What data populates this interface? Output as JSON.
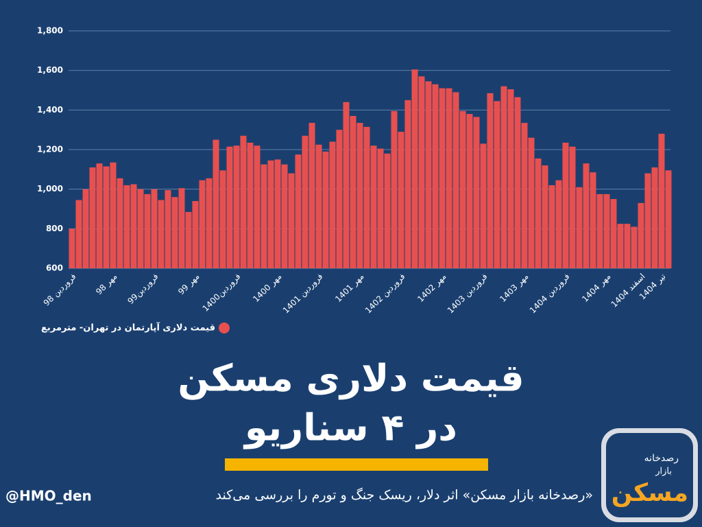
{
  "chart_data": {
    "type": "bar",
    "title": "قیمت دلاری مسکن",
    "title_line2": "در ۴ سناریو",
    "subtitle": "«رصدخانه بازار مسکن» اثر دلار، ریسک جنگ و تورم را بررسی می‌کند",
    "handle": "@HMO_den",
    "logo": {
      "line1": "رصدخانه",
      "line2": "بازار",
      "line3": "مسکن"
    },
    "series": [
      {
        "name": "قیمت دلاری آپارتمان در تهران- مترمربع",
        "color": "#e8504f",
        "values": [
          800,
          945,
          1000,
          1110,
          1130,
          1115,
          1135,
          1055,
          1020,
          1025,
          1000,
          975,
          1000,
          945,
          995,
          960,
          1005,
          885,
          940,
          1045,
          1055,
          1250,
          1095,
          1215,
          1220,
          1270,
          1235,
          1220,
          1125,
          1145,
          1150,
          1125,
          1080,
          1175,
          1270,
          1335,
          1225,
          1190,
          1240,
          1300,
          1440,
          1370,
          1335,
          1315,
          1220,
          1205,
          1180,
          1395,
          1290,
          1450,
          1605,
          1570,
          1545,
          1530,
          1510,
          1510,
          1490,
          1395,
          1380,
          1365,
          1230,
          1485,
          1445,
          1520,
          1505,
          1465,
          1335,
          1260,
          1155,
          1120,
          1020,
          1045,
          1235,
          1215,
          1010,
          1130,
          1085,
          975,
          975,
          950,
          825,
          825,
          810,
          930,
          1080,
          1110,
          1280,
          1095
        ]
      }
    ],
    "categories": [
      "فروردین 98",
      null,
      null,
      null,
      null,
      null,
      "مهر 98",
      null,
      null,
      null,
      null,
      null,
      "فروردین99",
      null,
      null,
      null,
      null,
      null,
      "مهر 99",
      null,
      null,
      null,
      null,
      null,
      "فروردین1400",
      null,
      null,
      null,
      null,
      null,
      "مهر 1400",
      null,
      null,
      null,
      null,
      null,
      "فروردین 1401",
      null,
      null,
      null,
      null,
      null,
      "مهر 1401",
      null,
      null,
      null,
      null,
      null,
      "فروردین 1402",
      null,
      null,
      null,
      null,
      null,
      "مهر 1402",
      null,
      null,
      null,
      null,
      null,
      "فروردین 1403",
      null,
      null,
      null,
      null,
      null,
      "مهر 1403",
      null,
      null,
      null,
      null,
      null,
      "فروردین 1404",
      null,
      null,
      null,
      null,
      null,
      "مهر 1404",
      null,
      null,
      null,
      null,
      "اسفند 1404",
      null,
      null,
      "تیر 1404",
      null
    ],
    "ylim": [
      600,
      1800
    ],
    "yticks": [
      600,
      800,
      {
        "value": 1000,
        "label": "1,000"
      },
      {
        "value": 1200,
        "label": "1,200"
      },
      {
        "value": 1400,
        "label": "1,400"
      },
      {
        "value": 1600,
        "label": "1,600"
      },
      {
        "value": 1800,
        "label": "1,800"
      }
    ],
    "grid": true
  }
}
